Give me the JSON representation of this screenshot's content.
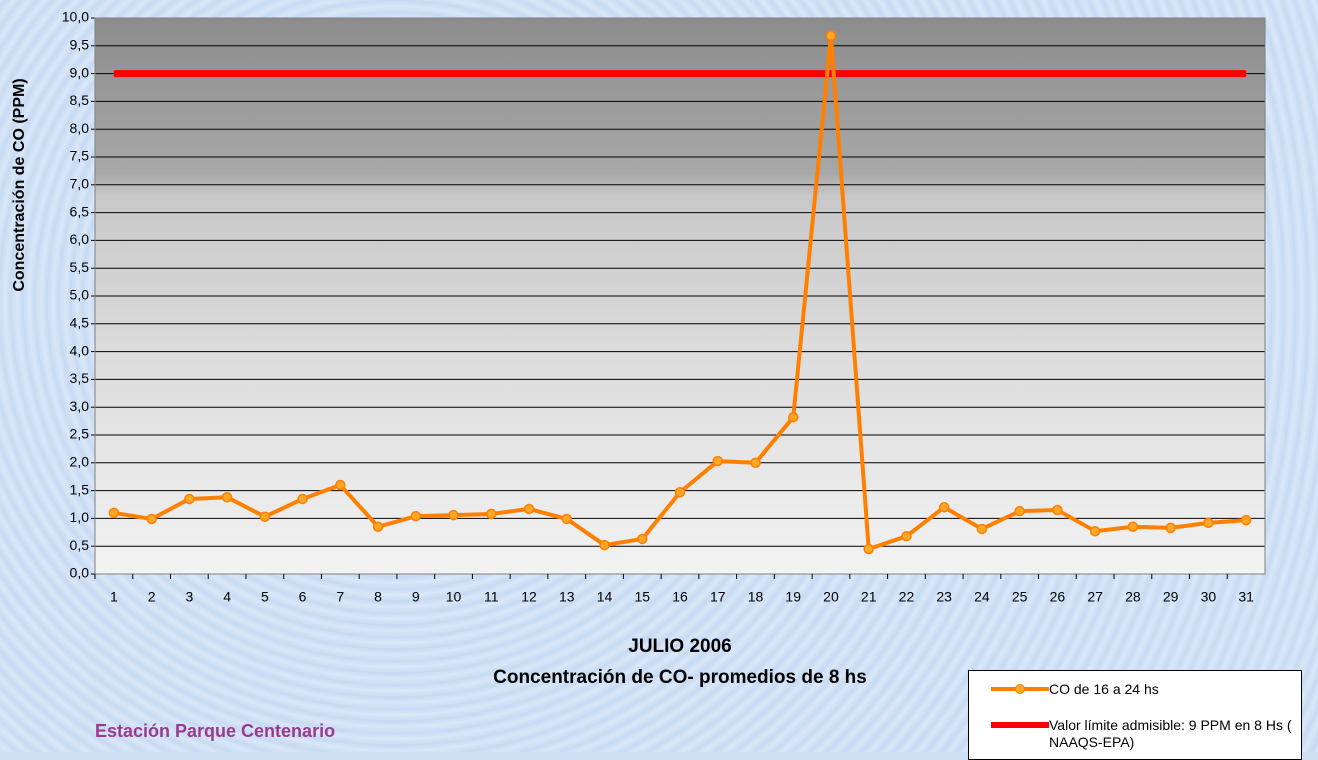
{
  "chart_data": {
    "type": "line",
    "title": "JULIO 2006",
    "subtitle": "Concentración de CO- promedios de 8 hs",
    "annotation": "Estación Parque Centenario",
    "y_label": "Concentración de CO (PPM)",
    "categories": [
      "1",
      "2",
      "3",
      "4",
      "5",
      "6",
      "7",
      "8",
      "9",
      "10",
      "11",
      "12",
      "13",
      "14",
      "15",
      "16",
      "17",
      "18",
      "19",
      "20",
      "21",
      "22",
      "23",
      "24",
      "25",
      "26",
      "27",
      "28",
      "29",
      "30",
      "31"
    ],
    "series": [
      {
        "name": "CO de 16 a 24 hs",
        "color": "#ff7f00",
        "marker_color": "#ffa726",
        "markers": true,
        "values": [
          1.1,
          0.99,
          1.35,
          1.38,
          1.03,
          1.35,
          1.6,
          0.85,
          1.04,
          1.06,
          1.08,
          1.17,
          0.99,
          0.52,
          0.63,
          1.47,
          2.03,
          2.0,
          2.82,
          9.68,
          0.45,
          0.68,
          1.2,
          0.81,
          1.13,
          1.15,
          0.77,
          0.85,
          0.83,
          0.92,
          0.97
        ]
      },
      {
        "name": "Valor límite admisible: 9 PPM en 8 Hs ( NAAQS-EPA)",
        "color": "#ff0000",
        "markers": false,
        "values": [
          9,
          9,
          9,
          9,
          9,
          9,
          9,
          9,
          9,
          9,
          9,
          9,
          9,
          9,
          9,
          9,
          9,
          9,
          9,
          9,
          9,
          9,
          9,
          9,
          9,
          9,
          9,
          9,
          9,
          9,
          9
        ]
      }
    ],
    "ylim": [
      0,
      10
    ],
    "yticks": [
      {
        "value": 0,
        "label": "0,0"
      },
      {
        "value": 0.5,
        "label": "0,5"
      },
      {
        "value": 1,
        "label": "1,0"
      },
      {
        "value": 1.5,
        "label": "1,5"
      },
      {
        "value": 2,
        "label": "2,0"
      },
      {
        "value": 2.5,
        "label": "2,5"
      },
      {
        "value": 3,
        "label": "3,0"
      },
      {
        "value": 3.5,
        "label": "3,5"
      },
      {
        "value": 4,
        "label": "4,0"
      },
      {
        "value": 4.5,
        "label": "4,5"
      },
      {
        "value": 5,
        "label": "5,0"
      },
      {
        "value": 5.5,
        "label": "5,5"
      },
      {
        "value": 6,
        "label": "6,0"
      },
      {
        "value": 6.5,
        "label": "6,5"
      },
      {
        "value": 7,
        "label": "7,0"
      },
      {
        "value": 7.5,
        "label": "7,5"
      },
      {
        "value": 8,
        "label": "8,0"
      },
      {
        "value": 8.5,
        "label": "8,5"
      },
      {
        "value": 9,
        "label": "9,0"
      },
      {
        "value": 9.5,
        "label": "9,5"
      },
      {
        "value": 10,
        "label": "10,0"
      }
    ],
    "grid": true,
    "legend_position": "bottom-right"
  }
}
